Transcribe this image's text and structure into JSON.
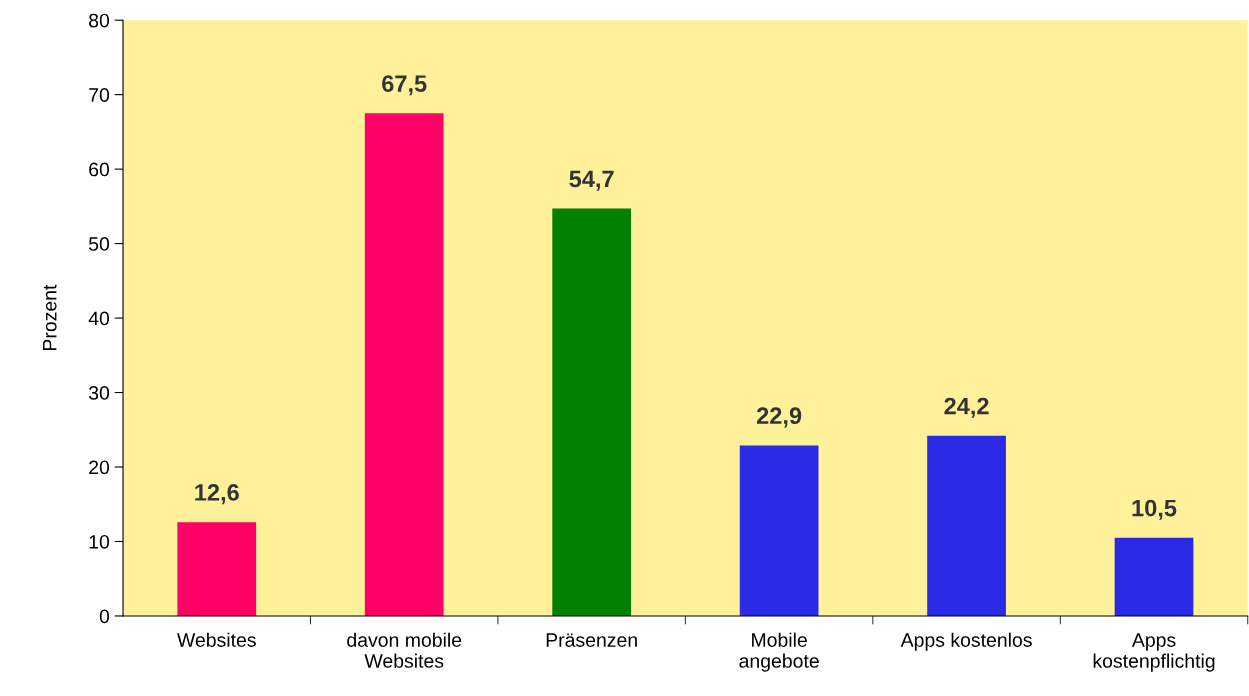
{
  "chart_data": {
    "type": "bar",
    "ylabel": "Prozent",
    "categories": [
      "Websites",
      "davon mobile\nWebsites",
      "Präsenzen",
      "Mobile\nangebote",
      "Apps kostenlos",
      "Apps\nkostenpflichtig"
    ],
    "values": [
      12.6,
      67.5,
      54.7,
      22.9,
      24.2,
      10.5
    ],
    "colors": [
      "#ff0066",
      "#ff0066",
      "#008000",
      "#2b2be6",
      "#2b2be6",
      "#2b2be6"
    ],
    "ylim": [
      0,
      80
    ],
    "yticks": [
      0,
      10,
      20,
      30,
      40,
      50,
      60,
      70,
      80
    ],
    "grid": false,
    "value_labels": [
      "12,6",
      "67,5",
      "54,7",
      "22,9",
      "24,2",
      "10,5"
    ],
    "legend": false
  }
}
